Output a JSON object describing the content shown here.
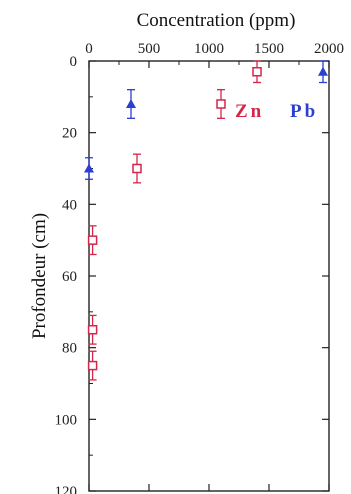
{
  "chart_data": {
    "type": "scatter",
    "title": "",
    "xlabel": "Concentration (ppm)",
    "ylabel": "Profondeur (cm)",
    "xlim": [
      0,
      2000
    ],
    "ylim": [
      0,
      120
    ],
    "y_inverted": true,
    "x_axis_position": "top",
    "x_ticks": [
      0,
      500,
      1000,
      1500,
      2000
    ],
    "x_tick_labels": [
      "0",
      "500",
      "1000",
      "1500",
      "2000"
    ],
    "y_ticks": [
      0,
      20,
      40,
      60,
      80,
      100,
      120
    ],
    "y_tick_labels": [
      "0",
      "20",
      "40",
      "60",
      "80",
      "100",
      "120"
    ],
    "legend_placement": "top-right",
    "grid": false,
    "series": [
      {
        "name": "Zn",
        "color": "#d4264a",
        "marker": "open-square",
        "points": [
          {
            "x": 1400,
            "y": 3,
            "err": 3
          },
          {
            "x": 1100,
            "y": 12,
            "err": 4
          },
          {
            "x": 400,
            "y": 30,
            "err": 4
          },
          {
            "x": 30,
            "y": 50,
            "err": 4
          },
          {
            "x": 30,
            "y": 75,
            "err": 4
          },
          {
            "x": 30,
            "y": 85,
            "err": 4
          }
        ]
      },
      {
        "name": "Pb",
        "color": "#2b3fd1",
        "marker": "filled-triangle",
        "points": [
          {
            "x": 1950,
            "y": 3,
            "err": 3
          },
          {
            "x": 350,
            "y": 12,
            "err": 4
          },
          {
            "x": 0,
            "y": 30,
            "err": 3
          }
        ]
      }
    ]
  }
}
